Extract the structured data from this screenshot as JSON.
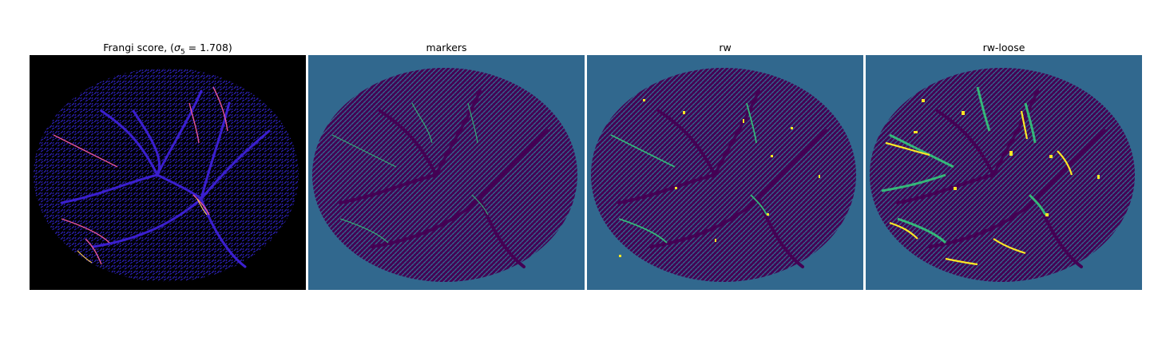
{
  "figure": {
    "panels": [
      {
        "id": "frangi",
        "title_prefix": "Frangi score, (",
        "title_sigma": "σ",
        "title_sub": "5",
        "title_suffix": " = 1.708)",
        "colormap": "plasma"
      },
      {
        "id": "markers",
        "title": "markers",
        "colormap": "viridis"
      },
      {
        "id": "rw",
        "title": "rw",
        "colormap": "viridis"
      },
      {
        "id": "rw-loose",
        "title": "rw-loose",
        "colormap": "viridis"
      }
    ],
    "colors": {
      "background_black": "#000000",
      "vessel_blue": "#2a1fb0",
      "frangi_hot": "#e8569a",
      "frangi_bright": "#f9c45b",
      "viridis_bg": "#31688e",
      "viridis_dark": "#440154",
      "viridis_teal": "#35b779",
      "viridis_yellow": "#fde725"
    }
  }
}
